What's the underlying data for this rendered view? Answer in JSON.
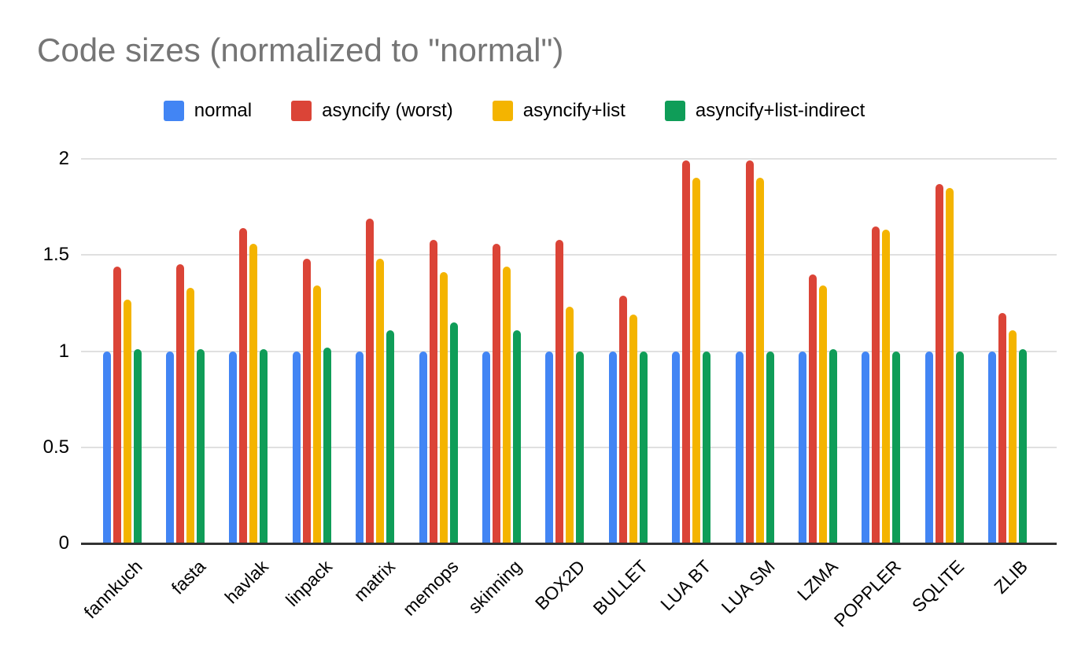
{
  "title": "Code sizes (normalized to \"normal\")",
  "chart_data": {
    "type": "bar",
    "title": "Code sizes (normalized to \"normal\")",
    "categories": [
      "fannkuch",
      "fasta",
      "havlak",
      "linpack",
      "matrix",
      "memops",
      "skinning",
      "BOX2D",
      "BULLET",
      "LUA BT",
      "LUA SM",
      "LZMA",
      "POPPLER",
      "SQLITE",
      "ZLIB"
    ],
    "series": [
      {
        "name": "normal",
        "color": "#4285F4",
        "values": [
          1.0,
          1.0,
          1.0,
          1.0,
          1.0,
          1.0,
          1.0,
          1.0,
          1.0,
          1.0,
          1.0,
          1.0,
          1.0,
          1.0,
          1.0
        ]
      },
      {
        "name": "asyncify (worst)",
        "color": "#DB4437",
        "values": [
          1.44,
          1.45,
          1.64,
          1.48,
          1.69,
          1.58,
          1.56,
          1.58,
          1.29,
          1.99,
          1.99,
          1.4,
          1.65,
          1.87,
          1.2
        ]
      },
      {
        "name": "asyncify+list",
        "color": "#F4B400",
        "values": [
          1.27,
          1.33,
          1.56,
          1.34,
          1.48,
          1.41,
          1.44,
          1.23,
          1.19,
          1.9,
          1.9,
          1.34,
          1.63,
          1.85,
          1.11
        ]
      },
      {
        "name": "asyncify+list-indirect",
        "color": "#0F9D58",
        "values": [
          1.01,
          1.01,
          1.01,
          1.02,
          1.11,
          1.15,
          1.11,
          1.0,
          1.0,
          1.0,
          1.0,
          1.01,
          1.0,
          1.0,
          1.01
        ]
      }
    ],
    "y_ticks": [
      0,
      0.5,
      1,
      1.5,
      2
    ],
    "y_tick_labels": [
      "0",
      "0.5",
      "1",
      "1.5",
      "2"
    ],
    "ylim": [
      0,
      2.13
    ],
    "xlabel": "",
    "ylabel": "",
    "grid": true,
    "legend_position": "top",
    "baseline_color": "#333333",
    "gridline_color": "#e0e0e0",
    "title_color": "#757575"
  }
}
